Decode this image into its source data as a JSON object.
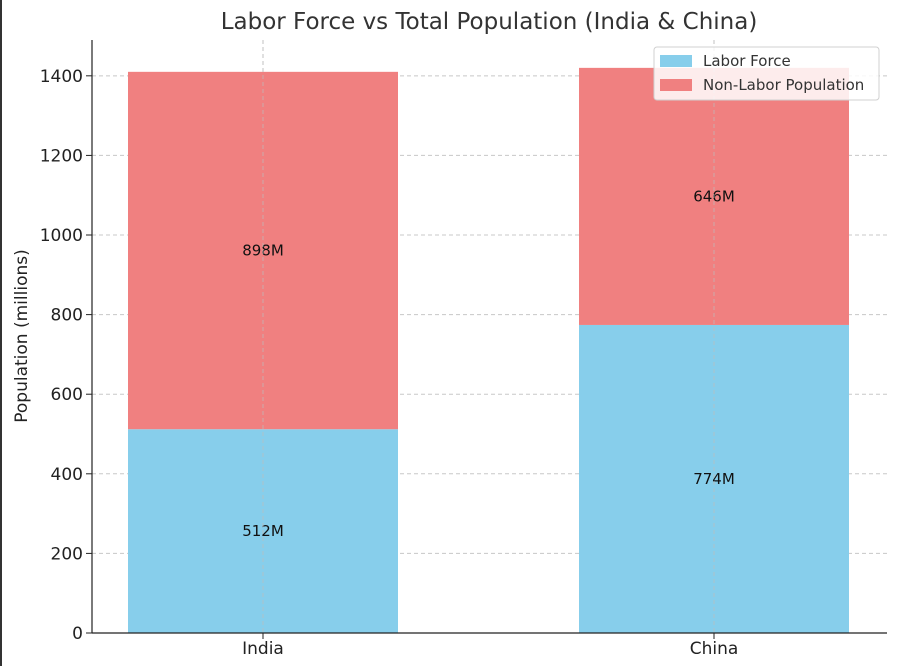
{
  "chart_data": {
    "type": "bar",
    "stacked": true,
    "title": "Labor Force vs Total Population (India & China)",
    "xlabel": "",
    "ylabel": "Population (millions)",
    "categories": [
      "India",
      "China"
    ],
    "series": [
      {
        "name": "Labor Force",
        "values": [
          512,
          774
        ],
        "labels": [
          "512M",
          "774M"
        ],
        "color": "#87CEEB"
      },
      {
        "name": "Non-Labor Population",
        "values": [
          898,
          646
        ],
        "labels": [
          "898M",
          "646M"
        ],
        "color": "#F08080"
      }
    ],
    "ylim": [
      0,
      1490
    ],
    "yticks": [
      0,
      200,
      400,
      600,
      800,
      1000,
      1200,
      1400
    ],
    "grid": true,
    "legend": "top-right"
  }
}
